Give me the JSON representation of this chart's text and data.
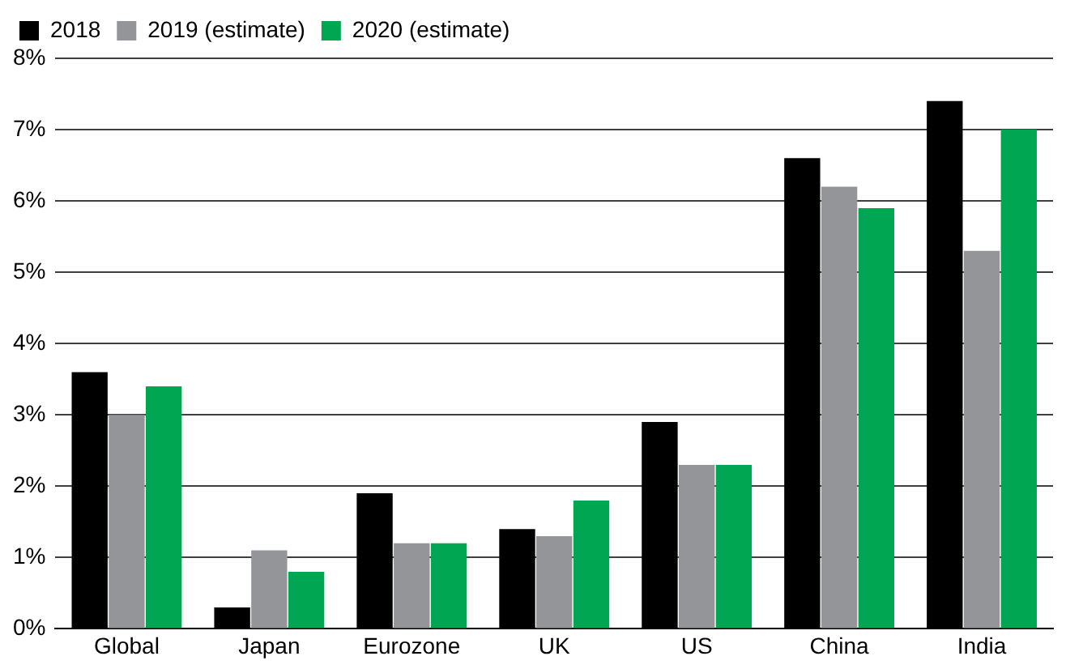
{
  "chart_data": {
    "type": "bar",
    "categories": [
      "Global",
      "Japan",
      "Eurozone",
      "UK",
      "US",
      "China",
      "India"
    ],
    "series": [
      {
        "name": "2018",
        "color": "#000000",
        "values": [
          3.6,
          0.3,
          1.9,
          1.4,
          2.9,
          6.6,
          7.4
        ]
      },
      {
        "name": "2019 (estimate)",
        "color": "#939598",
        "values": [
          3.0,
          1.1,
          1.2,
          1.3,
          2.3,
          6.2,
          5.3
        ]
      },
      {
        "name": "2020 (estimate)",
        "color": "#00a651",
        "values": [
          3.4,
          0.8,
          1.2,
          1.8,
          2.3,
          5.9,
          7.0
        ]
      }
    ],
    "ylim": [
      0,
      8
    ],
    "yticks": [
      {
        "value": 0,
        "label": "0%"
      },
      {
        "value": 1,
        "label": "1%"
      },
      {
        "value": 2,
        "label": "2%"
      },
      {
        "value": 3,
        "label": "3%"
      },
      {
        "value": 4,
        "label": "4%"
      },
      {
        "value": 5,
        "label": "5%"
      },
      {
        "value": 6,
        "label": "6%"
      },
      {
        "value": 7,
        "label": "7%"
      },
      {
        "value": 8,
        "label": "8%"
      }
    ],
    "grid": "y",
    "legend": "top left"
  }
}
